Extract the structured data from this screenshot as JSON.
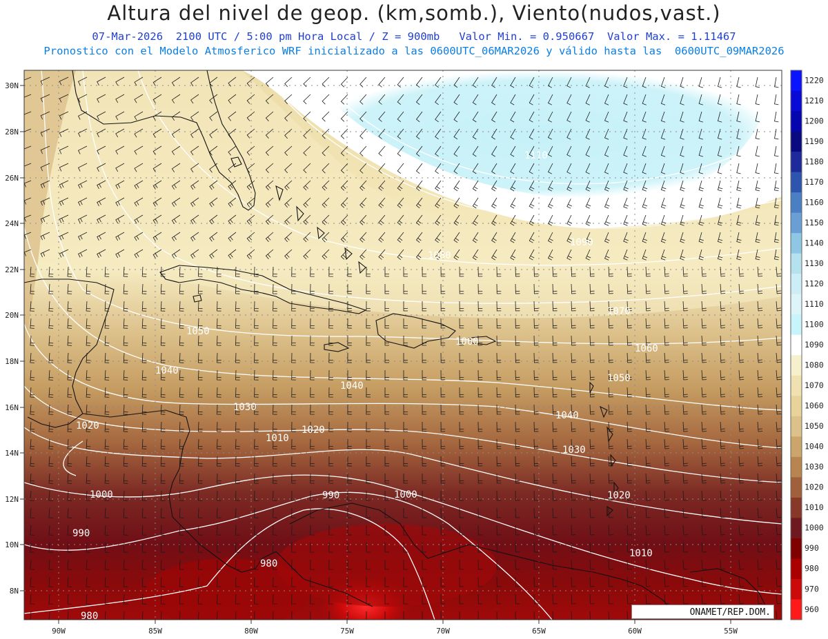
{
  "header": {
    "title": "Altura del nivel de geop. (km,somb.), Viento(nudos,vast.)",
    "subtitle_line1": "07-Mar-2026  2100 UTC / 5:00 pm Hora Local / Z = 900mb   Valor Min. = 0.950667  Valor Max. = 1.11467",
    "subtitle_line2": "Pronostico con el Modelo Atmosferico WRF inicializado a las 0600UTC_06MAR2026 y válido hasta las  0600UTC_09MAR2026"
  },
  "map": {
    "lon_ticks": [
      "90W",
      "85W",
      "80W",
      "75W",
      "70W",
      "65W",
      "60W",
      "55W"
    ],
    "lat_ticks": [
      "30N",
      "28N",
      "26N",
      "24N",
      "22N",
      "20N",
      "18N",
      "16N",
      "14N",
      "12N",
      "10N",
      "8N"
    ],
    "contour_labels": [
      {
        "text": "1110"
      },
      {
        "text": "1100"
      },
      {
        "text": "1090"
      },
      {
        "text": "1080"
      },
      {
        "text": "1070"
      },
      {
        "text": "1060"
      },
      {
        "text": "1060"
      },
      {
        "text": "1050"
      },
      {
        "text": "1050"
      },
      {
        "text": "1040"
      },
      {
        "text": "1040"
      },
      {
        "text": "1040"
      },
      {
        "text": "1030"
      },
      {
        "text": "1030"
      },
      {
        "text": "1020"
      },
      {
        "text": "1020"
      },
      {
        "text": "1020"
      },
      {
        "text": "1010"
      },
      {
        "text": "1010"
      },
      {
        "text": "1000"
      },
      {
        "text": "1000"
      },
      {
        "text": "990"
      },
      {
        "text": "990"
      },
      {
        "text": "980"
      },
      {
        "text": "980"
      },
      {
        "text": "1070"
      }
    ]
  },
  "colorbar": {
    "levels": [
      "1220",
      "1210",
      "1200",
      "1190",
      "1180",
      "1170",
      "1160",
      "1150",
      "1140",
      "1130",
      "1120",
      "1110",
      "1100",
      "1090",
      "1080",
      "1070",
      "1060",
      "1050",
      "1040",
      "1030",
      "1020",
      "1010",
      "1000",
      "990",
      "980",
      "970",
      "960"
    ],
    "colors": [
      "#0a14ff",
      "#0a0ad8",
      "#0606b0",
      "#0a0a80",
      "#1e2a9c",
      "#2d55ad",
      "#4a7fc4",
      "#6a9fd6",
      "#8ec6e4",
      "#b6e2ef",
      "#cdeef6",
      "#ddf4f9",
      "#c8f4fb",
      "#ffffff",
      "#f7f0cc",
      "#f0e2b0",
      "#e8d39a",
      "#dcc18a",
      "#cba56c",
      "#b88550",
      "#a0603c",
      "#883828",
      "#6e1820",
      "#800000",
      "#aa0000",
      "#cc0a0a",
      "#ff1a1a"
    ]
  },
  "credit": {
    "text": "ONAMET/REP.DOM."
  }
}
